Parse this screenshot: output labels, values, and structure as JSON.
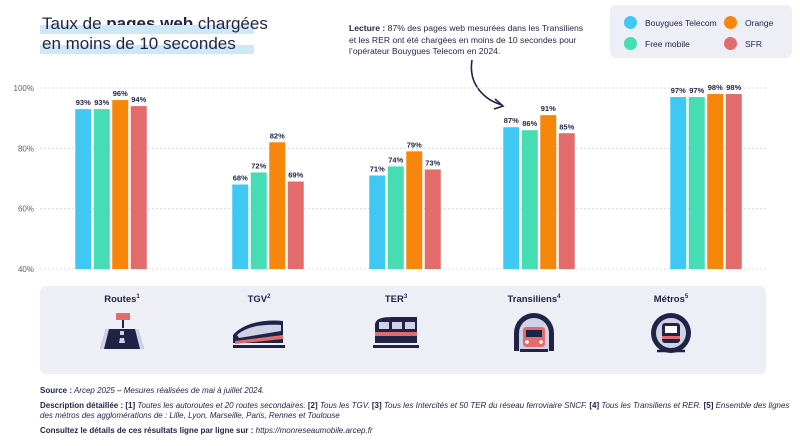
{
  "title": {
    "line1_pre": "Taux de ",
    "line1_bold": "pages web",
    "line1_post": " chargées",
    "line2": "en moins de 10 secondes"
  },
  "lecture": {
    "label": "Lecture :",
    "text": " 87% des pages web mesurées dans les Transiliens et les RER ont été chargées en moins de 10 secondes pour l’opérateur Bouygues Telecom en 2024."
  },
  "legend": [
    {
      "name": "Bouygues Telecom",
      "color": "#3fc8f4"
    },
    {
      "name": "Orange",
      "color": "#f7870c"
    },
    {
      "name": "Free mobile",
      "color": "#46dcb4"
    },
    {
      "name": "SFR",
      "color": "#e36b6b"
    }
  ],
  "chart_data": {
    "type": "bar",
    "categories": [
      "Routes",
      "TGV",
      "TER",
      "Transiliens",
      "Métros"
    ],
    "category_notes": [
      "1",
      "2",
      "3",
      "4",
      "5"
    ],
    "series": [
      {
        "name": "Bouygues Telecom",
        "color": "#3fc8f4",
        "values": [
          93,
          68,
          71,
          87,
          97
        ]
      },
      {
        "name": "Free mobile",
        "color": "#46dcb4",
        "values": [
          93,
          72,
          74,
          86,
          97
        ]
      },
      {
        "name": "Orange",
        "color": "#f7870c",
        "values": [
          96,
          82,
          79,
          91,
          98
        ]
      },
      {
        "name": "SFR",
        "color": "#e36b6b",
        "values": [
          94,
          69,
          73,
          85,
          98
        ]
      }
    ],
    "ylim": [
      40,
      100
    ],
    "yticks": [
      "40%",
      "60%",
      "80%",
      "100%"
    ],
    "ytick_values": [
      40,
      60,
      80,
      100
    ],
    "grid": true,
    "data_label_suffix": "%"
  },
  "footer": {
    "source_label": "Source :",
    "source_text": " Arcep 2025 – Mesures réalisées de mai à juillet 2024.",
    "desc_label": "Description détaillée :",
    "desc_parts": [
      {
        "tag": "[1]",
        "text": " Toutes les autoroutes et 20 routes secondaires. "
      },
      {
        "tag": "[2]",
        "text": " Tous les TGV. "
      },
      {
        "tag": "[3]",
        "text": " Tous les Intercités et 50 TER du réseau ferroviaire SNCF. "
      },
      {
        "tag": "[4]",
        "text": " Tous les Transiliens et RER. "
      },
      {
        "tag": "[5]",
        "text": " Ensemble des lignes des métros des agglomérations de : Lille, Lyon, Marseille, Paris, Rennes et Toulouse"
      }
    ],
    "consult_label": "Consultez le détails de ces résultats ligne par ligne sur :",
    "consult_url": " https://monreseaumobile.arcep.fr"
  }
}
